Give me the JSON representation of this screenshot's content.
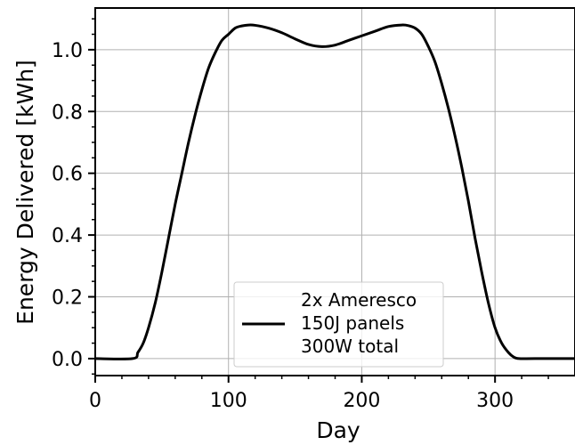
{
  "chart_data": {
    "type": "line",
    "title": "",
    "xlabel": "Day",
    "ylabel": "Energy Delivered [kWh]",
    "xlim": [
      0,
      360
    ],
    "ylim": [
      -0.055,
      1.135
    ],
    "xticks": [
      0,
      100,
      200,
      300
    ],
    "xtick_labels": [
      "0",
      "100",
      "200",
      "300"
    ],
    "yticks": [
      0.0,
      0.2,
      0.4,
      0.6,
      0.8,
      1.0
    ],
    "ytick_labels": [
      "0.0",
      "0.2",
      "0.4",
      "0.6",
      "0.8",
      "1.0"
    ],
    "grid": true,
    "legend_position": "lower-center",
    "series": [
      {
        "name": "2x Ameresco 150J panels 300W total",
        "color": "#000000",
        "x": [
          0,
          28,
          32,
          36,
          40,
          45,
          50,
          55,
          60,
          65,
          70,
          75,
          80,
          85,
          90,
          95,
          100,
          105,
          110,
          115,
          120,
          130,
          140,
          150,
          160,
          170,
          180,
          190,
          200,
          210,
          220,
          230,
          235,
          240,
          245,
          250,
          255,
          260,
          265,
          270,
          275,
          280,
          285,
          290,
          295,
          300,
          305,
          310,
          314,
          318,
          330,
          360
        ],
        "y": [
          0,
          0,
          0.02,
          0.05,
          0.1,
          0.18,
          0.28,
          0.39,
          0.5,
          0.6,
          0.7,
          0.79,
          0.87,
          0.94,
          0.99,
          1.03,
          1.05,
          1.07,
          1.077,
          1.08,
          1.079,
          1.07,
          1.055,
          1.035,
          1.017,
          1.01,
          1.015,
          1.03,
          1.045,
          1.06,
          1.075,
          1.08,
          1.078,
          1.07,
          1.05,
          1.01,
          0.96,
          0.89,
          0.81,
          0.72,
          0.62,
          0.51,
          0.39,
          0.28,
          0.18,
          0.1,
          0.05,
          0.02,
          0.005,
          0,
          0,
          0
        ]
      }
    ]
  },
  "legend": {
    "lines": [
      "2x Ameresco",
      "150J panels",
      "300W total"
    ]
  }
}
